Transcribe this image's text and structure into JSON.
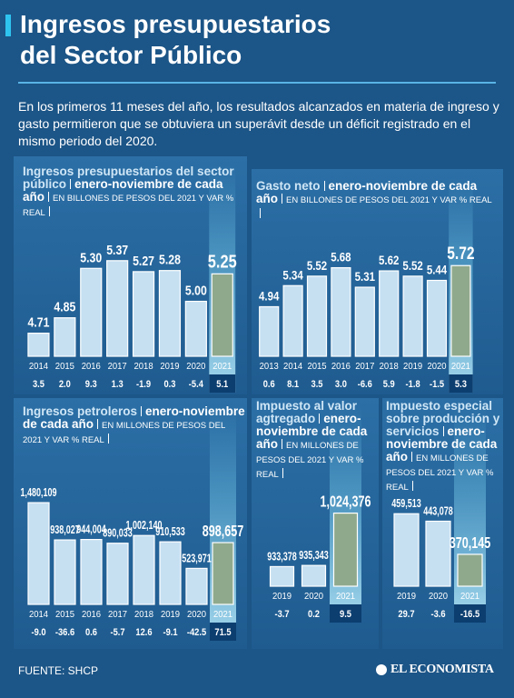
{
  "title": [
    "Ingresos presupuestarios",
    "del Sector Público"
  ],
  "intro": "En los primeros 11 meses del año, los resultados alcanzados en materia de ingreso y gasto permitieron que se obtuviera un superávit desde un déficit registrado en el mismo periodo del 2020.",
  "source": "FUENTE: SHCP",
  "brand": "EL ECONOMISTA",
  "chart_data": [
    {
      "type": "bar",
      "title": "Ingresos presupuestarios del sector público",
      "subtitle": "enero-noviembre de cada año",
      "unit": "EN BILLONES DE PESOS DEL 2021 Y VAR % REAL",
      "categories": [
        "2014",
        "2015",
        "2016",
        "2017",
        "2018",
        "2019",
        "2020",
        "2021"
      ],
      "values": [
        4.71,
        4.85,
        5.3,
        5.37,
        5.27,
        5.28,
        5.0,
        5.25
      ],
      "value_labels": [
        "4.71",
        "4.85",
        "5.30",
        "5.37",
        "5.27",
        "5.28",
        "5.00",
        "5.25"
      ],
      "var": [
        3.5,
        2.0,
        9.3,
        1.3,
        -1.9,
        0.3,
        -5.4,
        5.1
      ],
      "var_labels": [
        "3.5",
        "2.0",
        "9.3",
        "1.3",
        "-1.9",
        "0.3",
        "-5.4",
        "5.1"
      ],
      "color": "#c6e0f2",
      "highlight_color": "#8fa98c",
      "ylim": [
        4.5,
        5.6
      ]
    },
    {
      "type": "bar",
      "title": "Gasto neto",
      "subtitle": "enero-noviembre de cada año",
      "unit": "EN BILLONES DE PESOS DEL 2021 Y VAR % REAL",
      "categories": [
        "2013",
        "2014",
        "2015",
        "2016",
        "2017",
        "2018",
        "2019",
        "2020",
        "2021"
      ],
      "values": [
        4.94,
        5.34,
        5.52,
        5.68,
        5.31,
        5.62,
        5.52,
        5.44,
        5.72
      ],
      "value_labels": [
        "4.94",
        "5.34",
        "5.52",
        "5.68",
        "5.31",
        "5.62",
        "5.52",
        "5.44",
        "5.72"
      ],
      "var": [
        0.6,
        8.1,
        3.5,
        3.0,
        -6.6,
        5.9,
        -1.8,
        -1.5,
        5.3
      ],
      "var_labels": [
        "0.6",
        "8.1",
        "3.5",
        "3.0",
        "-6.6",
        "5.9",
        "-1.8",
        "-1.5",
        "5.3"
      ],
      "color": "#c6e0f2",
      "highlight_color": "#8fa98c",
      "ylim": [
        4,
        6
      ]
    },
    {
      "type": "bar",
      "title": "Ingresos petroleros",
      "subtitle": "enero-noviembre de cada año",
      "unit": "EN MILLONES DE PESOS DEL 2021 Y VAR % REAL",
      "categories": [
        "2014",
        "2015",
        "2016",
        "2017",
        "2018",
        "2019",
        "2020",
        "2021"
      ],
      "values": [
        1480109,
        938027,
        944004,
        890033,
        1002140,
        910533,
        523971,
        898657
      ],
      "value_labels": [
        "1,480,109",
        "938,027",
        "944,004",
        "890,033",
        "1,002,140",
        "910,533",
        "523,971",
        "898,657"
      ],
      "var": [
        -9.0,
        -36.6,
        0.6,
        -5.7,
        12.6,
        -9.1,
        -42.5,
        71.5
      ],
      "var_labels": [
        "-9.0",
        "-36.6",
        "0.6",
        "-5.7",
        "12.6",
        "-9.1",
        "-42.5",
        "71.5"
      ],
      "color": "#c6e0f2",
      "highlight_color": "#8fa98c",
      "ylim": [
        0,
        1600000
      ]
    },
    {
      "type": "bar",
      "title": "Impuesto al valor agtregado",
      "subtitle": "enero-noviembre de cada año",
      "unit": "EN MILLONES DE PESOS DEL 2021 Y VAR % REAL",
      "categories": [
        "2019",
        "2020",
        "2021"
      ],
      "values": [
        933378,
        935343,
        1024376
      ],
      "value_labels": [
        "933,378",
        "935,343",
        "1,024,376"
      ],
      "var": [
        -3.7,
        0.2,
        9.5
      ],
      "var_labels": [
        "-3.7",
        "0.2",
        "9.5"
      ],
      "color": "#c6e0f2",
      "highlight_color": "#8fa98c",
      "ylim": [
        900000,
        1050000
      ]
    },
    {
      "type": "bar",
      "title": "Impuesto especial sobre producción y servicios",
      "subtitle": "enero-noviembre de cada año",
      "unit": "EN MILLONES DE PESOS DEL 2021 Y VAR % REAL",
      "categories": [
        "2019",
        "2020",
        "2021"
      ],
      "values": [
        459513,
        443078,
        370145
      ],
      "value_labels": [
        "459,513",
        "443,078",
        "370,145"
      ],
      "var": [
        29.7,
        -3.6,
        -16.5
      ],
      "var_labels": [
        "29.7",
        "-3.6",
        "-16.5"
      ],
      "color": "#c6e0f2",
      "highlight_color": "#8fa98c",
      "ylim": [
        300000,
        480000
      ]
    }
  ]
}
